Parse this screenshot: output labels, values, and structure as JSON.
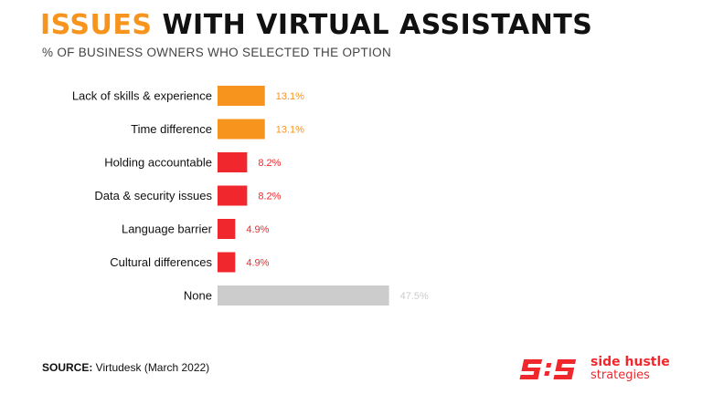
{
  "header": {
    "title_accent": "ISSUES",
    "title_rest": " WITH VIRTUAL ASSISTANTS",
    "subtitle": "% OF BUSINESS OWNERS WHO SELECTED THE OPTION"
  },
  "chart_data": {
    "type": "bar",
    "orientation": "horizontal",
    "categories": [
      "Lack of skills & experience",
      "Time difference",
      "Holding accountable",
      "Data & security issues",
      "Language barrier",
      "Cultural differences",
      "None"
    ],
    "values": [
      13.1,
      13.1,
      8.2,
      8.2,
      4.9,
      4.9,
      47.5
    ],
    "value_labels": [
      "13.1%",
      "13.1%",
      "8.2%",
      "8.2%",
      "4.9%",
      "4.9%",
      "47.5%"
    ],
    "bar_colors": [
      "#f7941d",
      "#f7941d",
      "#f0282d",
      "#f0282d",
      "#f0282d",
      "#f0282d",
      "#cccccc"
    ],
    "label_colors": [
      "#f7941d",
      "#f7941d",
      "#f0282d",
      "#f0282d",
      "#f0282d",
      "#f0282d",
      "#cccccc"
    ],
    "xlim": [
      0,
      50
    ],
    "grid": false,
    "legend": "none"
  },
  "footer": {
    "source_label": "SOURCE:",
    "source_text": " Virtudesk (March 2022)"
  },
  "logo": {
    "line1": "side hustle",
    "line2": "strategies",
    "color": "#f0282d"
  }
}
